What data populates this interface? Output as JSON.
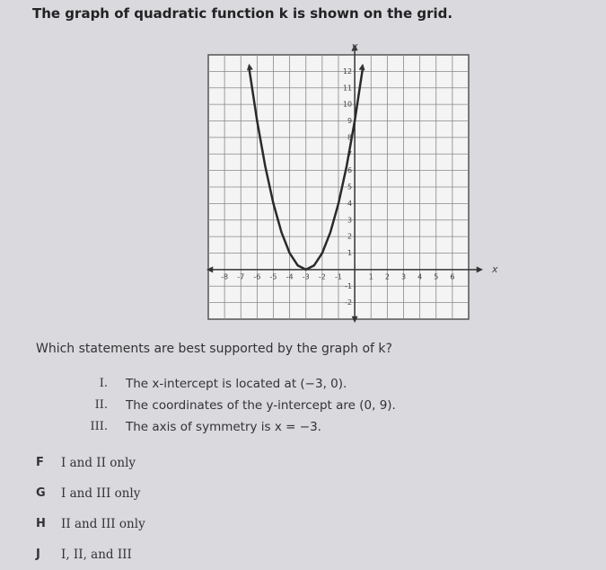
{
  "question": "The graph of quadratic function k is shown on the grid.",
  "chart_data": {
    "type": "line",
    "x_label": "x",
    "y_label": "y",
    "x": [
      -6.5,
      -6,
      -5.5,
      -5,
      -4.5,
      -4,
      -3.5,
      -3,
      -2.5,
      -2,
      -1.5,
      -1,
      -0.5,
      0,
      0.5
    ],
    "values": [
      12.25,
      9,
      6.25,
      4,
      2.25,
      1,
      0.25,
      0,
      0.25,
      1,
      2.25,
      4,
      6.25,
      9,
      12.25
    ],
    "color": "#2a2a2a",
    "xlim": [
      -9,
      7
    ],
    "ylim": [
      -3,
      13
    ],
    "xticks": [
      -8,
      -7,
      -6,
      -5,
      -4,
      -3,
      -2,
      -1,
      1,
      2,
      3,
      4,
      5,
      6
    ],
    "yticks": [
      -2,
      -1,
      1,
      2,
      3,
      4,
      5,
      6,
      7,
      8,
      9,
      10,
      11,
      12
    ],
    "grid": true
  },
  "prompt": "Which statements are best supported by the graph of k?",
  "statements": [
    {
      "numeral": "I.",
      "text": "The x-intercept is located at (−3, 0)."
    },
    {
      "numeral": "II.",
      "text": "The coordinates of the y-intercept are (0, 9)."
    },
    {
      "numeral": "III.",
      "text": "The axis of symmetry is x = −3."
    }
  ],
  "options": [
    {
      "letter": "F",
      "text": "I and II only"
    },
    {
      "letter": "G",
      "text": "I and III only"
    },
    {
      "letter": "H",
      "text": "II and III only"
    },
    {
      "letter": "J",
      "text": "I, II, and III"
    }
  ]
}
